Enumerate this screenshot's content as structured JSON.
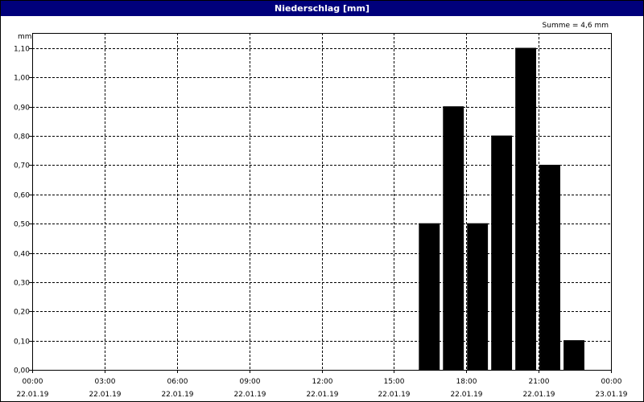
{
  "window": {
    "title": "Niederschlag [mm]"
  },
  "summary": {
    "text": "Summe = 4,6 mm"
  },
  "colors": {
    "title_bar": "#00007b",
    "bars": "#000000",
    "grid": "#000000",
    "background": "#ffffff"
  },
  "chart_data": {
    "type": "bar",
    "title": "Niederschlag [mm]",
    "ylabel": "mm",
    "xlabel": "",
    "ylim": [
      0,
      1.1
    ],
    "y_ticks": [
      "0,00",
      "0,10",
      "0,20",
      "0,30",
      "0,40",
      "0,50",
      "0,60",
      "0,70",
      "0,80",
      "0,90",
      "1,00",
      "1,10"
    ],
    "x_range_hours": [
      0,
      24
    ],
    "x_ticks": [
      {
        "time": "00:00",
        "date": "22.01.19"
      },
      {
        "time": "03:00",
        "date": "22.01.19"
      },
      {
        "time": "06:00",
        "date": "22.01.19"
      },
      {
        "time": "09:00",
        "date": "22.01.19"
      },
      {
        "time": "12:00",
        "date": "22.01.19"
      },
      {
        "time": "15:00",
        "date": "22.01.19"
      },
      {
        "time": "18:00",
        "date": "22.01.19"
      },
      {
        "time": "21:00",
        "date": "22.01.19"
      },
      {
        "time": "00:00",
        "date": "23.01.19"
      }
    ],
    "bars": [
      {
        "time": "16:00",
        "value": 0.5
      },
      {
        "time": "17:00",
        "value": 0.9
      },
      {
        "time": "18:00",
        "value": 0.5
      },
      {
        "time": "19:00",
        "value": 0.8
      },
      {
        "time": "20:00",
        "value": 1.1
      },
      {
        "time": "21:00",
        "value": 0.7
      },
      {
        "time": "22:00",
        "value": 0.1
      }
    ],
    "grid": true,
    "grid_style": "dashed"
  }
}
